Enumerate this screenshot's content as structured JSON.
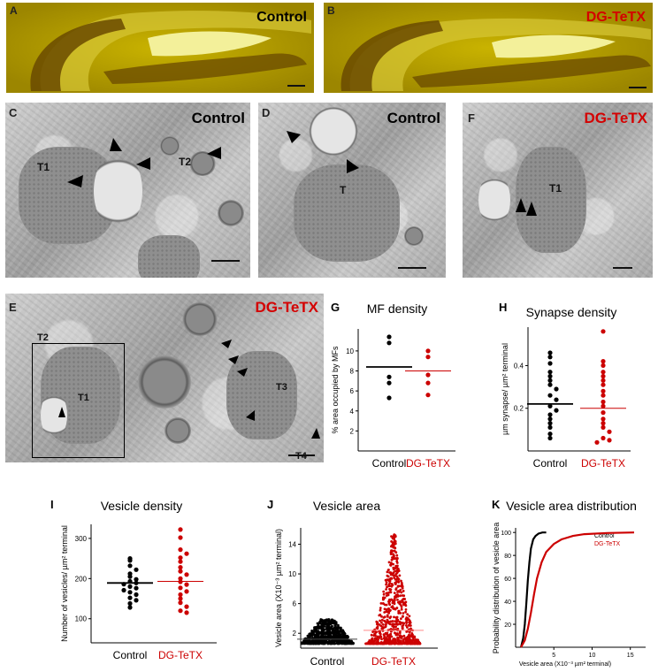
{
  "colors": {
    "control": "#000000",
    "tetx": "#cc0000",
    "fluor_bg": "#b59e00",
    "fluor_band": "#e9e36a"
  },
  "panels": {
    "A": {
      "letter": "A",
      "label": "Control"
    },
    "B": {
      "letter": "B",
      "label": "DG-TeTX"
    },
    "C": {
      "letter": "C",
      "label": "Control",
      "terminals": [
        "T1",
        "T2"
      ]
    },
    "D": {
      "letter": "D",
      "label": "Control",
      "terminals": [
        "T"
      ]
    },
    "F": {
      "letter": "F",
      "label": "DG-TeTX",
      "terminals": [
        "T1"
      ]
    },
    "E": {
      "letter": "E",
      "label": "DG-TeTX",
      "terminals": [
        "T2",
        "T1",
        "T3",
        "T4"
      ]
    },
    "G": {
      "letter": "G",
      "title": "MF density"
    },
    "H": {
      "letter": "H",
      "title": "Synapse density"
    },
    "I": {
      "letter": "I",
      "title": "Vesicle density"
    },
    "J": {
      "letter": "J",
      "title": "Vesicle area"
    },
    "K": {
      "letter": "K",
      "title": "Vesicle area distribution"
    }
  },
  "chart_data": [
    {
      "id": "G",
      "type": "scatter",
      "title": "MF density",
      "ylabel": "% area occupied by MFs",
      "categories": [
        "Control",
        "DG-TeTX"
      ],
      "yticks": [
        "2",
        "4",
        "6",
        "8",
        "10"
      ],
      "ylim": [
        0,
        12.2
      ],
      "series": [
        {
          "name": "Control",
          "values": [
            11.4,
            10.8,
            7.4,
            6.8,
            5.3
          ],
          "mean": 8.4
        },
        {
          "name": "DG-TeTX",
          "values": [
            10.0,
            9.4,
            7.6,
            6.8,
            5.6
          ],
          "mean": 8.0
        }
      ]
    },
    {
      "id": "H",
      "type": "scatter",
      "title": "Synapse density",
      "ylabel": "µm synapse/ µm² terminal",
      "categories": [
        "Control",
        "DG-TeTX"
      ],
      "yticks": [
        "0.2",
        "0.4"
      ],
      "ylim": [
        0,
        0.58
      ],
      "series": [
        {
          "name": "Control",
          "values": [
            0.46,
            0.44,
            0.41,
            0.37,
            0.35,
            0.33,
            0.31,
            0.29,
            0.26,
            0.24,
            0.21,
            0.19,
            0.17,
            0.15,
            0.13,
            0.11,
            0.08,
            0.06
          ],
          "mean": 0.22
        },
        {
          "name": "DG-TeTX",
          "values": [
            0.56,
            0.42,
            0.4,
            0.37,
            0.35,
            0.33,
            0.31,
            0.28,
            0.26,
            0.23,
            0.21,
            0.18,
            0.15,
            0.13,
            0.11,
            0.09,
            0.06,
            0.05,
            0.04
          ],
          "mean": 0.2
        }
      ]
    },
    {
      "id": "I",
      "type": "scatter",
      "title": "Vesicle density",
      "ylabel": "Number of vesicles/ µm² terminal",
      "categories": [
        "Control",
        "DG-TeTX"
      ],
      "yticks": [
        "100",
        "200",
        "300"
      ],
      "ylim": [
        40,
        335
      ],
      "series": [
        {
          "name": "Control",
          "values": [
            250,
            245,
            232,
            222,
            212,
            205,
            198,
            193,
            189,
            186,
            180,
            176,
            171,
            166,
            160,
            152,
            146,
            138,
            128
          ],
          "mean": 189
        },
        {
          "name": "DG-TeTX",
          "values": [
            322,
            302,
            272,
            262,
            252,
            242,
            228,
            218,
            210,
            200,
            192,
            185,
            177,
            168,
            160,
            150,
            140,
            130,
            120,
            115
          ],
          "mean": 193
        }
      ]
    },
    {
      "id": "J",
      "type": "scatter",
      "title": "Vesicle area",
      "ylabel": "Vesicle area (X10⁻³ µm² terminal)",
      "categories": [
        "Control",
        "DG-TeTX"
      ],
      "yticks": [
        "2",
        "6",
        "10",
        "14"
      ],
      "ylim": [
        0,
        16.2
      ],
      "series": [
        {
          "name": "Control",
          "range": [
            0.6,
            3.9
          ],
          "median": 1.2
        },
        {
          "name": "DG-TeTX",
          "range": [
            0.6,
            15.3
          ],
          "median": 2.4
        }
      ]
    },
    {
      "id": "K",
      "type": "line",
      "title": "Vesicle area distribution",
      "xlabel": "Vesicle area (X10⁻³ µm² terminal)",
      "ylabel": "Probability distribution of vesicle area",
      "xticks": [
        "5",
        "10",
        "15"
      ],
      "yticks": [
        "20",
        "40",
        "60",
        "80",
        "100"
      ],
      "xlim": [
        0,
        17
      ],
      "ylim": [
        0,
        104
      ],
      "legend": "top-right",
      "series": [
        {
          "name": "Control",
          "x": [
            0.7,
            1.0,
            1.2,
            1.4,
            1.6,
            1.8,
            2.0,
            2.3,
            2.6,
            3.0,
            3.5,
            4.0
          ],
          "y": [
            0,
            8,
            20,
            38,
            58,
            74,
            86,
            94,
            97,
            99,
            100,
            100
          ]
        },
        {
          "name": "DG-TeTX",
          "x": [
            0.7,
            1.2,
            1.6,
            2.0,
            2.4,
            2.8,
            3.4,
            4.0,
            5.0,
            6.0,
            7.5,
            9.0,
            12.0,
            15.5
          ],
          "y": [
            0,
            6,
            16,
            30,
            46,
            60,
            74,
            83,
            90,
            94,
            97,
            98.5,
            99.5,
            100
          ]
        }
      ]
    }
  ]
}
